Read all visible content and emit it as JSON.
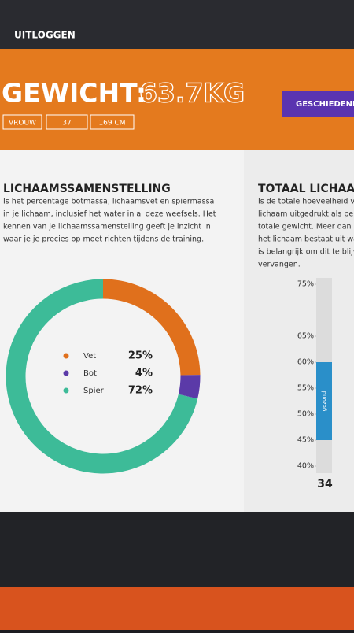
{
  "header": {
    "logout": "UITLOGGEN",
    "weight_label": "GEWICHT:",
    "weight_value": "63.7KG",
    "history_button": "GESCHIEDENI",
    "tags": [
      "VROUW",
      "37",
      "169 CM"
    ]
  },
  "composition": {
    "title": "LICHAAMSSAMENSTELLING",
    "text": [
      "Is het percentage botmassa, lichaamsvet en spiermassa",
      "in je lichaam, inclusief het water in al deze weefsels. Het",
      "kennen van je lichaamssamenstelling geeft je inzicht in",
      "waar je je precies op moet richten tijdens de training."
    ],
    "chart_data": {
      "type": "pie",
      "categories": [
        "Vet",
        "Bot",
        "Spier"
      ],
      "values": [
        25,
        4,
        72
      ],
      "value_labels": [
        "25%",
        "4%",
        "72%"
      ],
      "colors": [
        "#e0701c",
        "#5b3aa8",
        "#3dbb98"
      ]
    }
  },
  "water": {
    "title": "TOTAAL LICHAA",
    "text": [
      "Is de totale hoeveelheid vo",
      "lichaam uitgedrukt als per",
      "totale gewicht. Meer dan d",
      "het lichaam bestaat uit wa",
      "is belangrijk om dit te blijv",
      "vervangen."
    ],
    "chart_data": {
      "type": "range",
      "ylim": [
        40,
        75
      ],
      "yticks": [
        {
          "value": 75,
          "label": "75%"
        },
        {
          "value": 65,
          "label": "65%"
        },
        {
          "value": 60,
          "label": "60%"
        },
        {
          "value": 55,
          "label": "55%"
        },
        {
          "value": 50,
          "label": "50%"
        },
        {
          "value": 45,
          "label": "45%"
        },
        {
          "value": 40,
          "label": "40%"
        }
      ],
      "range": [
        45,
        60
      ],
      "range_label": "gezond",
      "color": "#2a8fc9"
    },
    "value": "34"
  }
}
